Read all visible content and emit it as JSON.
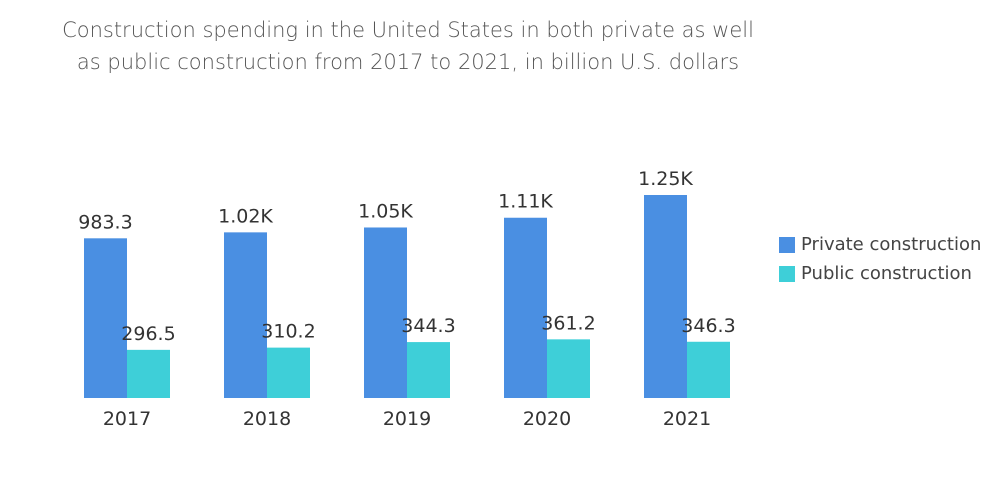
{
  "chart_data": {
    "type": "bar",
    "title": "Construction spending in the United States in both private as well as public construction from 2017 to 2021, in billion U.S. dollars",
    "title_lines": [
      "Construction spending in the United States in both private as well",
      "as public construction from 2017 to 2021, in billion U.S. dollars"
    ],
    "categories": [
      "2017",
      "2018",
      "2019",
      "2020",
      "2021"
    ],
    "series": [
      {
        "name": "Private construction",
        "color": "#4a8fe2",
        "values": [
          983.3,
          1020,
          1050,
          1110,
          1250
        ],
        "labels": [
          "983.3",
          "1.02K",
          "1.05K",
          "1.11K",
          "1.25K"
        ]
      },
      {
        "name": "Public construction",
        "color": "#3ecfd8",
        "values": [
          296.5,
          310.2,
          344.3,
          361.2,
          346.3
        ],
        "labels": [
          "296.5",
          "310.2",
          "344.3",
          "361.2",
          "346.3"
        ]
      }
    ],
    "ylim": [
      0,
      1250
    ],
    "grid": false,
    "legend": "right"
  }
}
